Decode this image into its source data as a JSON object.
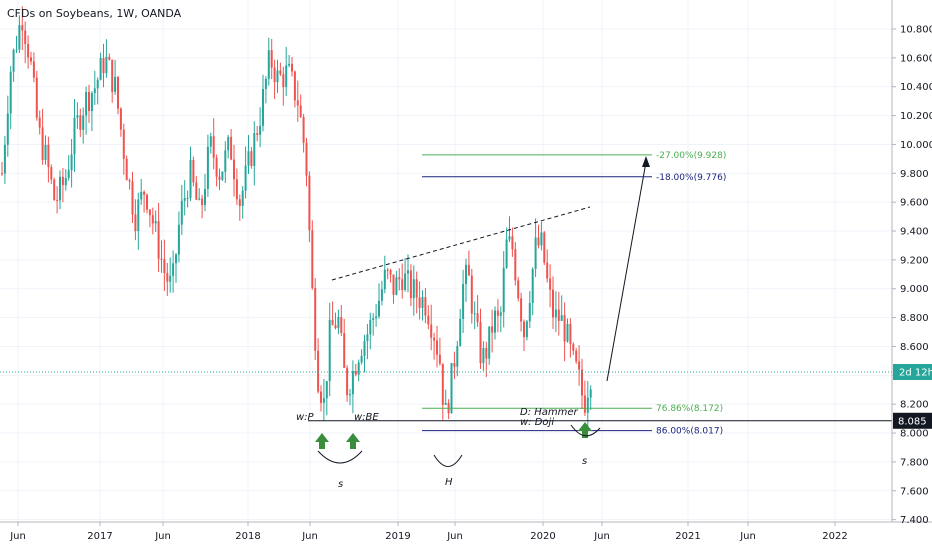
{
  "chart_data": {
    "type": "candlestick",
    "title": "CFDs on Soybeans, 1W, OANDA",
    "y_axis": {
      "ticks": [
        "10.800",
        "10.600",
        "10.400",
        "10.200",
        "10.000",
        "9.800",
        "9.600",
        "9.400",
        "9.200",
        "9.000",
        "8.800",
        "8.600",
        "8.400",
        "8.200",
        "8.000",
        "7.800",
        "7.600",
        "7.400"
      ],
      "ylim": [
        7.35,
        11.0
      ]
    },
    "x_axis": {
      "ticks": [
        "Jun",
        "2017",
        "Jun",
        "2018",
        "Jun",
        "2019",
        "Jun",
        "2020",
        "Jun",
        "2021",
        "Jun",
        "2022"
      ]
    },
    "price_tags": {
      "countdown": "2d 12h",
      "last_price": "8.085"
    },
    "fib_levels": [
      {
        "label": "-27.00%(9.928)",
        "value": 9.928,
        "color": "#4caf50"
      },
      {
        "label": "-18.00%(9.776)",
        "value": 9.776,
        "color": "#1a237e"
      },
      {
        "label": "76.86%(8.172)",
        "value": 8.172,
        "color": "#4caf50"
      },
      {
        "label": "86.00%(8.017)",
        "value": 8.017,
        "color": "#1a237e"
      }
    ],
    "annotations": {
      "wp": "w:P",
      "wbe": "w:BE",
      "dhammer": "D: Hammer",
      "wdoji": "w: Doji",
      "s_left": "s",
      "h_mid": "H",
      "s_right": "s"
    },
    "colors": {
      "up": "#26a69a",
      "down": "#ef5350",
      "last_price_line": "#26a69a"
    }
  }
}
